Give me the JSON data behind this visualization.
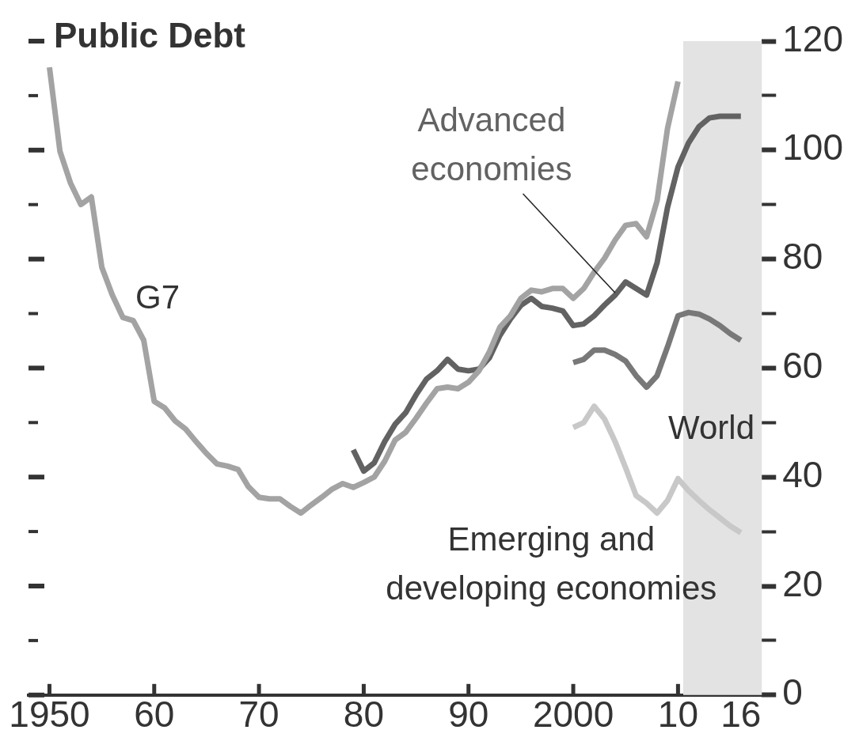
{
  "chart_data": {
    "type": "line",
    "title": "Public Debt",
    "xlim": [
      1948,
      2018
    ],
    "xticks": [
      1950,
      {
        "value": 1960,
        "label": "60"
      },
      {
        "value": 1970,
        "label": "70"
      },
      {
        "value": 1980,
        "label": "80"
      },
      {
        "value": 1990,
        "label": "90"
      },
      2000,
      {
        "value": 2010,
        "label": "10"
      },
      {
        "value": 2016,
        "label": "16"
      }
    ],
    "ylim": [
      0,
      120
    ],
    "yticks": [
      0,
      {
        "value": 10,
        "label": null
      },
      20,
      {
        "value": 30,
        "label": null
      },
      40,
      {
        "value": 50,
        "label": null
      },
      60,
      {
        "value": 70,
        "label": null
      },
      80,
      {
        "value": 90,
        "label": null
      },
      100,
      {
        "value": 110,
        "label": null
      },
      120
    ],
    "grid": false,
    "legend": false,
    "marker": "none",
    "line_style": "solid",
    "bands": [
      {
        "axis": "x",
        "from": 2010.5,
        "to": 2018,
        "color": "#e3e3e3"
      }
    ],
    "series": [
      {
        "name": "G7",
        "color": "#a3a3a3",
        "x": [
          1950,
          1951,
          1952,
          1953,
          1954,
          1955,
          1956,
          1957,
          1958,
          1959,
          1960,
          1961,
          1962,
          1963,
          1964,
          1965,
          1966,
          1967,
          1968,
          1969,
          1970,
          1971,
          1972,
          1973,
          1974,
          1975,
          1976,
          1977,
          1978,
          1979,
          1980,
          1981,
          1982,
          1983,
          1984,
          1985,
          1986,
          1987,
          1988,
          1989,
          1990,
          1991,
          1992,
          1993,
          1994,
          1995,
          1996,
          1997,
          1998,
          1999,
          2000,
          2001,
          2002,
          2003,
          2004,
          2005,
          2006,
          2007,
          2008,
          2009,
          2010
        ],
        "values": [
          115.2,
          99.8,
          94,
          90,
          91.4,
          78.5,
          73.4,
          69.3,
          68.7,
          65.1,
          53.9,
          52.7,
          50.3,
          48.8,
          46.5,
          44.3,
          42.4,
          42,
          41.4,
          38.2,
          36.3,
          36,
          36,
          34.6,
          33.4,
          34.9,
          36.3,
          37.8,
          38.8,
          38.1,
          39,
          40,
          42.9,
          46.8,
          48.2,
          50.8,
          53.6,
          56.2,
          56.5,
          56.2,
          57.4,
          59.5,
          63,
          67.5,
          69.6,
          72.8,
          74.3,
          74,
          74.6,
          74.6,
          72.8,
          74.6,
          77.6,
          80.2,
          83.5,
          86.2,
          86.5,
          84.1,
          90.7,
          104,
          112.6
        ]
      },
      {
        "name": "Advanced economies",
        "color": "#626262",
        "x": [
          1979,
          1980,
          1981,
          1982,
          1983,
          1984,
          1985,
          1986,
          1987,
          1988,
          1989,
          1990,
          1991,
          1992,
          1993,
          1994,
          1995,
          1996,
          1997,
          1998,
          1999,
          2000,
          2001,
          2002,
          2003,
          2004,
          2005,
          2006,
          2007,
          2008,
          2009,
          2010,
          2011,
          2012,
          2013,
          2014,
          2015,
          2016
        ],
        "values": [
          45,
          41.1,
          42.6,
          46.5,
          49.7,
          51.8,
          55.1,
          58,
          59.5,
          61.6,
          59.8,
          59.5,
          59.8,
          61.9,
          66,
          69,
          71.5,
          72.8,
          71.3,
          71,
          70.5,
          67.8,
          68.1,
          69.6,
          71.6,
          73.4,
          75.8,
          74.6,
          73.4,
          79.3,
          89.5,
          96.9,
          101.3,
          104.3,
          105.9,
          106.2,
          106.2,
          106.2
        ]
      },
      {
        "name": "World",
        "color": "#787878",
        "x": [
          2000,
          2001,
          2002,
          2003,
          2004,
          2005,
          2006,
          2007,
          2008,
          2009,
          2010,
          2011,
          2012,
          2013,
          2014,
          2015,
          2016
        ],
        "values": [
          61,
          61.6,
          63.3,
          63.3,
          62.5,
          61.3,
          58.6,
          56.5,
          58.6,
          63.9,
          69.6,
          70.2,
          69.9,
          69,
          67.8,
          66.3,
          65.1
        ]
      },
      {
        "name": "Emerging and developing economies",
        "color": "#c8c8c8",
        "x": [
          2000,
          2001,
          2002,
          2003,
          2004,
          2005,
          2006,
          2007,
          2008,
          2009,
          2010,
          2011,
          2012,
          2013,
          2014,
          2015,
          2016
        ],
        "values": [
          49.1,
          50,
          53,
          50.6,
          46.5,
          41.7,
          36.6,
          35.2,
          33.4,
          35.7,
          39.7,
          37.5,
          35.7,
          34,
          32.5,
          31,
          29.8
        ]
      }
    ]
  }
}
